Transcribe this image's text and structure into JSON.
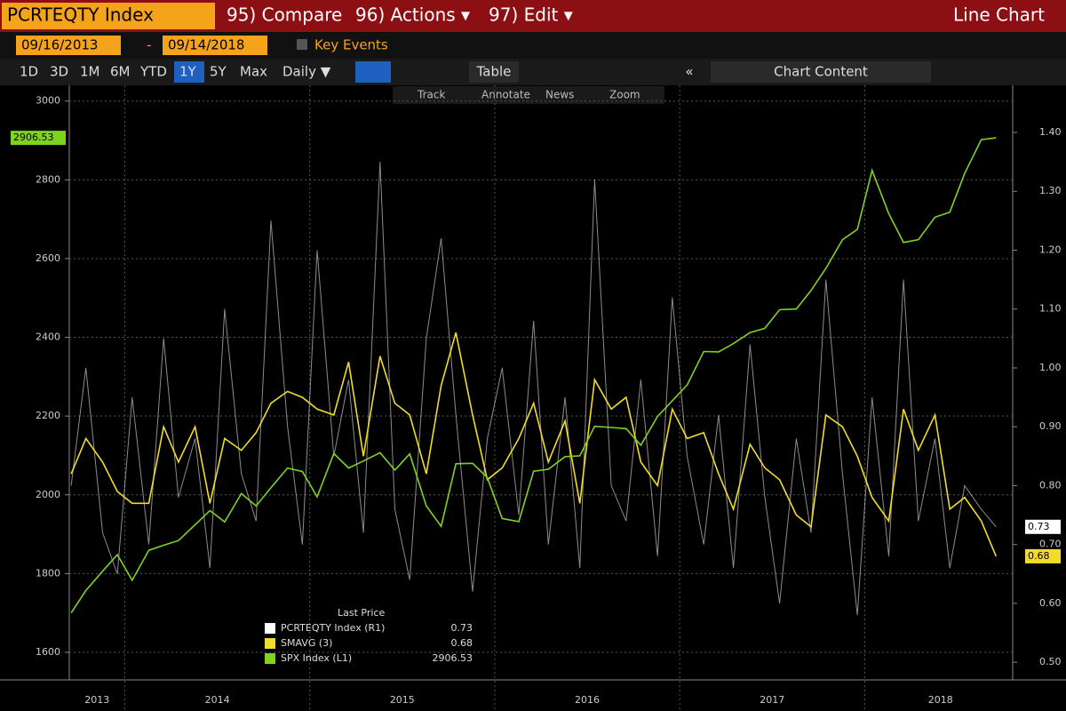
{
  "header": {
    "ticker": "PCRTEQTY Index",
    "compare": "95) Compare",
    "actions": "96) Actions ▾",
    "edit": "97) Edit ▾",
    "view": "Line Chart"
  },
  "range": {
    "start": "09/16/2013",
    "dash": "-",
    "end": "09/14/2018",
    "key_events": "Key Events"
  },
  "toolbar": {
    "periods": [
      "1D",
      "3D",
      "1M",
      "6M",
      "YTD",
      "1Y",
      "5Y",
      "Max"
    ],
    "frequency": "Daily ▼",
    "table": "Table",
    "collapse": "«",
    "content": "Chart Content"
  },
  "tools": [
    "Track",
    "Annotate",
    "News",
    "Zoom"
  ],
  "chart_data": {
    "type": "line",
    "x": [
      2013.71,
      2013.79,
      2013.88,
      2013.96,
      2014.04,
      2014.13,
      2014.21,
      2014.29,
      2014.38,
      2014.46,
      2014.54,
      2014.63,
      2014.71,
      2014.79,
      2014.88,
      2014.96,
      2015.04,
      2015.13,
      2015.21,
      2015.29,
      2015.38,
      2015.46,
      2015.54,
      2015.63,
      2015.71,
      2015.79,
      2015.88,
      2015.96,
      2016.04,
      2016.13,
      2016.21,
      2016.29,
      2016.38,
      2016.46,
      2016.54,
      2016.63,
      2016.71,
      2016.79,
      2016.88,
      2016.96,
      2017.04,
      2017.13,
      2017.21,
      2017.29,
      2017.38,
      2017.46,
      2017.54,
      2017.63,
      2017.71,
      2017.79,
      2017.88,
      2017.96,
      2018.04,
      2018.13,
      2018.21,
      2018.29,
      2018.38,
      2018.46,
      2018.54,
      2018.63,
      2018.71
    ],
    "xlim": [
      2013.7,
      2018.8
    ],
    "xticks": [
      {
        "value": 2013.85,
        "label": "2013"
      },
      {
        "value": 2014.5,
        "label": "2014"
      },
      {
        "value": 2015.5,
        "label": "2015"
      },
      {
        "value": 2016.5,
        "label": "2016"
      },
      {
        "value": 2017.5,
        "label": "2017"
      },
      {
        "value": 2018.41,
        "label": "2018"
      }
    ],
    "ylim": [
      1530,
      3040
    ],
    "yticks": [
      1600,
      1800,
      2000,
      2200,
      2400,
      2600,
      2800,
      3000
    ],
    "y2lim": [
      0.47,
      1.48
    ],
    "y2ticks": [
      {
        "value": 0.5,
        "label": "0.50"
      },
      {
        "value": 0.6,
        "label": "0.60"
      },
      {
        "value": 0.7,
        "label": "0.70"
      },
      {
        "value": 0.8,
        "label": "0.80"
      },
      {
        "value": 0.9,
        "label": "0.90"
      },
      {
        "value": 1.0,
        "label": "1.00"
      },
      {
        "value": 1.1,
        "label": "1.10"
      },
      {
        "value": 1.2,
        "label": "1.20"
      },
      {
        "value": 1.3,
        "label": "1.30"
      },
      {
        "value": 1.4,
        "label": "1.40"
      }
    ],
    "grid": true,
    "legend_title": "Last Price",
    "series": [
      {
        "name": "PCRTEQTY Index (R1)",
        "color": "#ffffff",
        "axis": "y2",
        "last_price": 0.73,
        "values": [
          0.8,
          1.0,
          0.72,
          0.65,
          0.95,
          0.7,
          1.05,
          0.78,
          0.88,
          0.66,
          1.1,
          0.82,
          0.74,
          1.25,
          0.9,
          0.7,
          1.2,
          0.85,
          0.98,
          0.72,
          1.35,
          0.76,
          0.64,
          1.05,
          1.22,
          0.92,
          0.62,
          0.88,
          1.0,
          0.75,
          1.08,
          0.7,
          0.95,
          0.66,
          1.32,
          0.8,
          0.74,
          0.98,
          0.68,
          1.12,
          0.85,
          0.7,
          0.92,
          0.66,
          1.04,
          0.78,
          0.6,
          0.88,
          0.72,
          1.15,
          0.82,
          0.58,
          0.95,
          0.68,
          1.15,
          0.74,
          0.88,
          0.66,
          0.8,
          0.76,
          0.73
        ]
      },
      {
        "name": "SMAVG (3)",
        "color": "#f2dc2a",
        "axis": "y2",
        "last_price": 0.68,
        "values": [
          0.82,
          0.88,
          0.84,
          0.79,
          0.77,
          0.77,
          0.9,
          0.84,
          0.9,
          0.77,
          0.88,
          0.86,
          0.89,
          0.94,
          0.96,
          0.95,
          0.93,
          0.92,
          1.01,
          0.85,
          1.02,
          0.94,
          0.92,
          0.82,
          0.97,
          1.06,
          0.92,
          0.81,
          0.83,
          0.88,
          0.94,
          0.84,
          0.91,
          0.77,
          0.98,
          0.93,
          0.95,
          0.84,
          0.8,
          0.93,
          0.88,
          0.89,
          0.82,
          0.76,
          0.87,
          0.83,
          0.81,
          0.75,
          0.73,
          0.92,
          0.9,
          0.85,
          0.78,
          0.74,
          0.93,
          0.86,
          0.92,
          0.76,
          0.78,
          0.74,
          0.68
        ]
      },
      {
        "name": "SPX Index (L1)",
        "color": "#7ed321",
        "last_price": 2906.53,
        "values": [
          1700,
          1757,
          1806,
          1848,
          1783,
          1859,
          1872,
          1884,
          1924,
          1960,
          1931,
          2003,
          1972,
          2018,
          2068,
          2059,
          1995,
          2105,
          2068,
          2086,
          2107,
          2063,
          2104,
          1972,
          1920,
          2079,
          2080,
          2044,
          1940,
          1932,
          2060,
          2065,
          2097,
          2099,
          2174,
          2171,
          2168,
          2126,
          2199,
          2239,
          2279,
          2364,
          2363,
          2384,
          2412,
          2423,
          2470,
          2472,
          2519,
          2575,
          2648,
          2674,
          2824,
          2714,
          2641,
          2648,
          2705,
          2718,
          2816,
          2902,
          2906.53
        ]
      }
    ]
  }
}
